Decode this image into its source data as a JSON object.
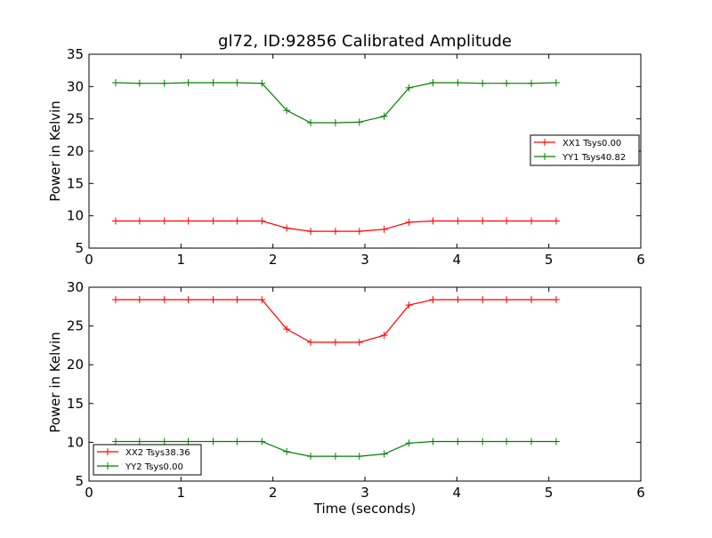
{
  "colors": {
    "red": "#ff0000",
    "green": "#008000"
  },
  "chart_data": [
    {
      "type": "line",
      "title": "gl72, ID:92856 Calibrated Amplitude",
      "xlabel": "",
      "ylabel": "Power in Kelvin",
      "xlim": [
        0,
        6
      ],
      "ylim": [
        5,
        35
      ],
      "xticks": [
        "0",
        "1",
        "2",
        "3",
        "4",
        "5",
        "6"
      ],
      "yticks": [
        "5",
        "10",
        "15",
        "20",
        "25",
        "30",
        "35"
      ],
      "legend_position": "center-right",
      "x": [
        0.29,
        0.55,
        0.82,
        1.08,
        1.35,
        1.61,
        1.88,
        2.15,
        2.41,
        2.68,
        2.94,
        3.21,
        3.48,
        3.74,
        4.01,
        4.28,
        4.54,
        4.81,
        5.08
      ],
      "series": [
        {
          "name": "XX1 Tsys0.00",
          "color": "red",
          "values": [
            9.2,
            9.2,
            9.2,
            9.2,
            9.2,
            9.2,
            9.2,
            8.1,
            7.6,
            7.6,
            7.6,
            7.9,
            9.0,
            9.2,
            9.2,
            9.2,
            9.2,
            9.2,
            9.2
          ]
        },
        {
          "name": "YY1 Tsys40.82",
          "color": "green",
          "values": [
            30.6,
            30.5,
            30.5,
            30.6,
            30.6,
            30.6,
            30.5,
            26.3,
            24.4,
            24.4,
            24.5,
            25.4,
            29.8,
            30.6,
            30.6,
            30.5,
            30.5,
            30.5,
            30.6
          ]
        }
      ]
    },
    {
      "type": "line",
      "title": "",
      "xlabel": "Time (seconds)",
      "ylabel": "Power in Kelvin",
      "xlim": [
        0,
        6
      ],
      "ylim": [
        5,
        30
      ],
      "xticks": [
        "0",
        "1",
        "2",
        "3",
        "4",
        "5",
        "6"
      ],
      "yticks": [
        "5",
        "10",
        "15",
        "20",
        "25",
        "30"
      ],
      "legend_position": "lower-left",
      "x": [
        0.29,
        0.55,
        0.82,
        1.08,
        1.35,
        1.61,
        1.88,
        2.15,
        2.41,
        2.68,
        2.94,
        3.21,
        3.48,
        3.74,
        4.01,
        4.28,
        4.54,
        4.81,
        5.08
      ],
      "series": [
        {
          "name": "XX2 Tsys38.36",
          "color": "red",
          "values": [
            28.4,
            28.4,
            28.4,
            28.4,
            28.4,
            28.4,
            28.4,
            24.6,
            22.9,
            22.9,
            22.9,
            23.8,
            27.7,
            28.4,
            28.4,
            28.4,
            28.4,
            28.4,
            28.4
          ]
        },
        {
          "name": "YY2 Tsys0.00",
          "color": "green",
          "values": [
            10.1,
            10.1,
            10.1,
            10.1,
            10.1,
            10.1,
            10.1,
            8.8,
            8.2,
            8.2,
            8.2,
            8.5,
            9.9,
            10.1,
            10.1,
            10.1,
            10.1,
            10.1,
            10.1
          ]
        }
      ]
    }
  ]
}
